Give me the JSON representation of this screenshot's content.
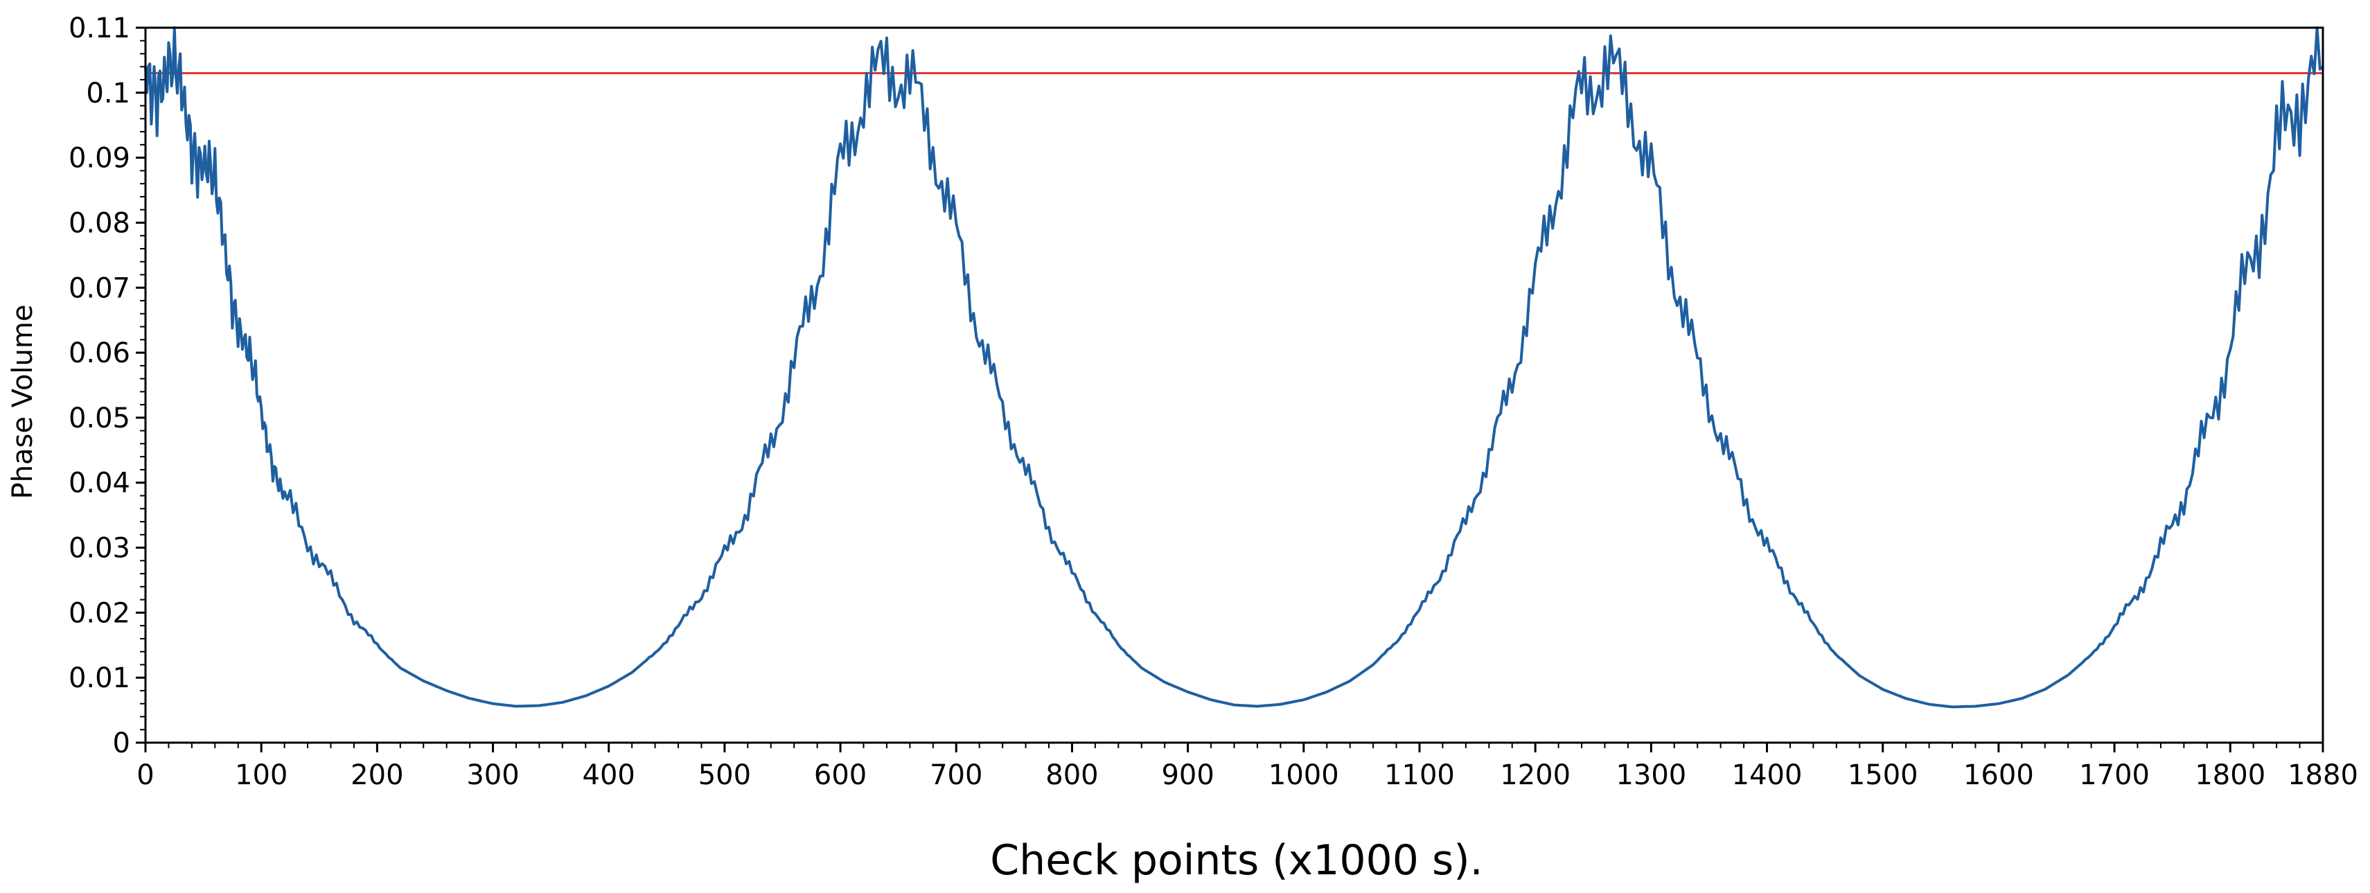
{
  "chart_data": {
    "type": "line",
    "title": "",
    "xlabel": "Check points (x1000 s).",
    "ylabel": "Phase Volume",
    "xlim": [
      0,
      1880
    ],
    "ylim": [
      0,
      0.11
    ],
    "x_ticks": [
      0,
      100,
      200,
      300,
      400,
      500,
      600,
      700,
      800,
      900,
      1000,
      1100,
      1200,
      1300,
      1400,
      1500,
      1600,
      1700,
      1800,
      1880
    ],
    "x_tick_labels": [
      "0",
      "100",
      "200",
      "300",
      "400",
      "500",
      "600",
      "700",
      "800",
      "900",
      "1000",
      "1100",
      "1200",
      "1300",
      "1400",
      "1500",
      "1600",
      "1700",
      "1800",
      "1880"
    ],
    "y_ticks": [
      0,
      0.01,
      0.02,
      0.03,
      0.04,
      0.05,
      0.06,
      0.07,
      0.08,
      0.09,
      0.1,
      0.11
    ],
    "y_tick_labels": [
      "0",
      "0.01",
      "0.02",
      "0.03",
      "0.04",
      "0.05",
      "0.06",
      "0.07",
      "0.08",
      "0.09",
      "0.1",
      "0.11"
    ],
    "grid": false,
    "legend": "none",
    "colors": {
      "series": "#1f5fa0",
      "threshold": "#e03030"
    },
    "series": [
      {
        "x": [
          0,
          10,
          20,
          30,
          40,
          50,
          60,
          70,
          80,
          90,
          100,
          110,
          120,
          140,
          160,
          180,
          200,
          220,
          240,
          260,
          280,
          300,
          320,
          340,
          360,
          380,
          400,
          420,
          440,
          460,
          480,
          500,
          520,
          540,
          560,
          580,
          600,
          620,
          640,
          660,
          680,
          700,
          720,
          740,
          760,
          780,
          800,
          820,
          840,
          860,
          880,
          900,
          920,
          940,
          960,
          980,
          1000,
          1020,
          1040,
          1060,
          1080,
          1100,
          1120,
          1140,
          1160,
          1180,
          1200,
          1220,
          1240,
          1260,
          1280,
          1300,
          1320,
          1340,
          1360,
          1380,
          1400,
          1420,
          1440,
          1460,
          1480,
          1500,
          1520,
          1540,
          1560,
          1580,
          1600,
          1620,
          1640,
          1660,
          1680,
          1700,
          1720,
          1740,
          1760,
          1780,
          1800,
          1820,
          1840,
          1860,
          1880
        ],
        "y": [
          0.104,
          0.104,
          0.102,
          0.099,
          0.095,
          0.09,
          0.083,
          0.075,
          0.066,
          0.058,
          0.05,
          0.044,
          0.038,
          0.031,
          0.025,
          0.019,
          0.015,
          0.0115,
          0.0095,
          0.008,
          0.0068,
          0.006,
          0.0056,
          0.0057,
          0.0062,
          0.0072,
          0.0087,
          0.0108,
          0.0138,
          0.0178,
          0.0228,
          0.029,
          0.036,
          0.046,
          0.058,
          0.072,
          0.088,
          0.1,
          0.104,
          0.102,
          0.092,
          0.078,
          0.063,
          0.051,
          0.042,
          0.033,
          0.026,
          0.02,
          0.015,
          0.0115,
          0.0093,
          0.0078,
          0.0066,
          0.0058,
          0.0056,
          0.0059,
          0.0066,
          0.0078,
          0.0095,
          0.012,
          0.0155,
          0.0203,
          0.0265,
          0.034,
          0.044,
          0.056,
          0.071,
          0.087,
          0.1,
          0.104,
          0.1,
          0.087,
          0.072,
          0.058,
          0.047,
          0.038,
          0.03,
          0.024,
          0.018,
          0.0135,
          0.0103,
          0.0082,
          0.0068,
          0.0059,
          0.0055,
          0.0056,
          0.006,
          0.0068,
          0.0082,
          0.0104,
          0.0135,
          0.0178,
          0.023,
          0.0295,
          0.038,
          0.048,
          0.061,
          0.076,
          0.09,
          0.101,
          0.104
        ]
      }
    ],
    "reference_line": {
      "y": 0.103
    }
  }
}
